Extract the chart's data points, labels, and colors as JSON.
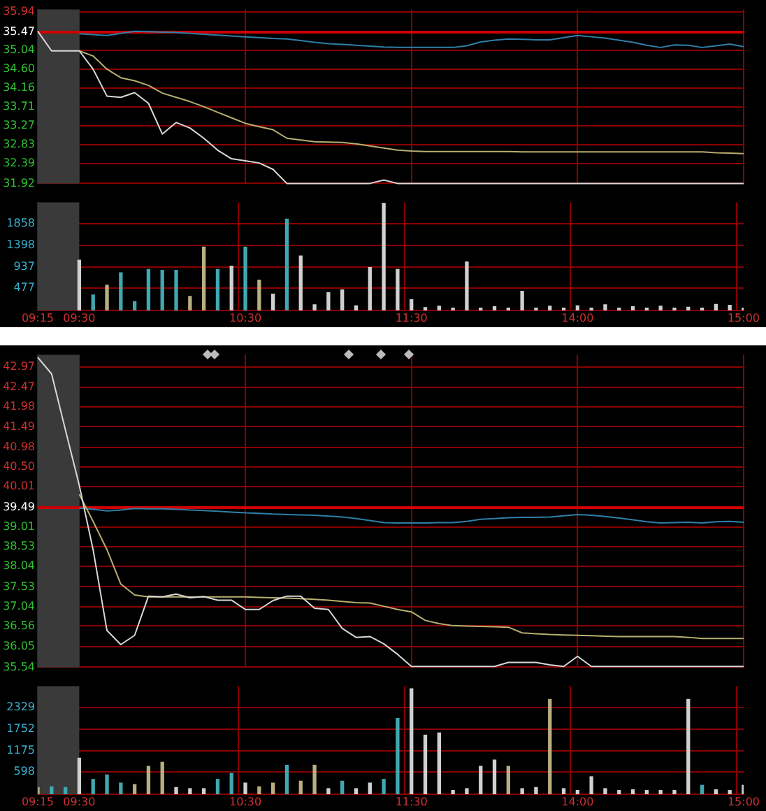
{
  "chart_data": [
    {
      "type": "line",
      "categories": [
        "09:15",
        null,
        null,
        "09:30",
        null,
        null,
        null,
        null,
        null,
        null,
        null,
        null,
        null,
        null,
        null,
        "10:30",
        null,
        null,
        null,
        null,
        null,
        null,
        null,
        null,
        null,
        null,
        null,
        "11:30",
        null,
        null,
        null,
        null,
        null,
        null,
        null,
        null,
        null,
        null,
        null,
        "14:00",
        null,
        null,
        null,
        null,
        null,
        null,
        null,
        null,
        null,
        null,
        null,
        "15:00"
      ],
      "tick_labels": "y",
      "ylim": [
        31.92,
        36.0
      ],
      "yticks": [
        35.94,
        35.47,
        35.04,
        {
          "value": 34.6,
          "label": "34.60"
        },
        34.16,
        33.71,
        33.27,
        32.83,
        32.39,
        31.92
      ],
      "grid": true,
      "marker": "none",
      "bands": [
        {
          "axis": "x",
          "from": "09:15",
          "to": "09:30",
          "color": "#3a3a3a"
        }
      ],
      "ref_lines": [
        {
          "axis": "y",
          "value": 35.47,
          "color": "#cc0000"
        }
      ],
      "series": [
        {
          "color": "#d8d8d8",
          "values": [
            35.49,
            35.03,
            35.03,
            35.03,
            34.6,
            33.97,
            33.94,
            34.05,
            33.8,
            33.08,
            33.35,
            33.22,
            32.98,
            32.7,
            32.5,
            32.45,
            32.4,
            32.25,
            31.92,
            31.92,
            31.92,
            31.92,
            31.92,
            31.92,
            31.92,
            32.0,
            31.92,
            31.92,
            31.92,
            31.92,
            31.92,
            31.92,
            31.92,
            31.92,
            31.92,
            31.92,
            31.92,
            31.92,
            31.92,
            31.92,
            31.92,
            31.92,
            31.92,
            31.92,
            31.92,
            31.92,
            31.92,
            31.92,
            31.92,
            31.92,
            31.92,
            31.92
          ]
        },
        {
          "color": "#b8ae70",
          "values": [
            null,
            null,
            null,
            35.03,
            34.91,
            34.6,
            34.4,
            34.33,
            34.22,
            34.04,
            33.94,
            33.84,
            33.72,
            33.59,
            33.46,
            33.33,
            33.25,
            33.18,
            32.98,
            32.94,
            32.9,
            32.89,
            32.88,
            32.85,
            32.8,
            32.75,
            32.7,
            32.68,
            32.67,
            32.67,
            32.67,
            32.67,
            32.67,
            32.67,
            32.67,
            32.66,
            32.66,
            32.66,
            32.66,
            32.66,
            32.66,
            32.66,
            32.66,
            32.66,
            32.66,
            32.66,
            32.66,
            32.66,
            32.66,
            32.64,
            32.63,
            32.62
          ]
        },
        {
          "color": "#2f7fa8",
          "values": [
            null,
            null,
            null,
            35.43,
            35.41,
            35.39,
            35.44,
            35.49,
            35.48,
            35.47,
            35.46,
            35.44,
            35.42,
            35.4,
            35.38,
            35.36,
            35.34,
            35.32,
            35.31,
            35.27,
            35.23,
            35.2,
            35.18,
            35.16,
            35.14,
            35.12,
            35.11,
            35.11,
            35.11,
            35.11,
            35.11,
            35.15,
            35.24,
            35.28,
            35.31,
            35.3,
            35.29,
            35.29,
            35.34,
            35.39,
            35.36,
            35.33,
            35.28,
            35.23,
            35.16,
            35.11,
            35.17,
            35.16,
            35.11,
            35.15,
            35.19,
            35.13
          ]
        }
      ]
    },
    {
      "type": "bar",
      "categories": [
        "09:15",
        null,
        null,
        "09:30",
        null,
        null,
        null,
        null,
        null,
        null,
        null,
        null,
        null,
        null,
        null,
        "10:30",
        null,
        null,
        null,
        null,
        null,
        null,
        null,
        null,
        null,
        null,
        null,
        "11:30",
        null,
        null,
        null,
        null,
        null,
        null,
        null,
        null,
        null,
        null,
        null,
        "14:00",
        null,
        null,
        null,
        null,
        null,
        null,
        null,
        null,
        null,
        null,
        null,
        "15:00"
      ],
      "ylim": [
        0,
        2318
      ],
      "yticks": [
        477,
        937,
        1398,
        1858
      ],
      "grid": true,
      "bands": [
        {
          "axis": "x",
          "from": "09:15",
          "to": "09:30",
          "color": "#3a3a3a"
        }
      ],
      "values": [
        null,
        null,
        null,
        1080,
        330,
        540,
        810,
        190,
        880,
        860,
        860,
        300,
        1360,
        880,
        950,
        1360,
        650,
        350,
        1960,
        1170,
        120,
        380,
        440,
        100,
        920,
        2300,
        880,
        230,
        60,
        90,
        50,
        1040,
        50,
        80,
        50,
        410,
        50,
        90,
        50,
        100,
        50,
        120,
        50,
        80,
        50,
        90,
        50,
        70,
        50,
        130,
        110,
        50
      ],
      "colors": [
        "#d0d0d0",
        "#d0d0d0",
        "#d0d0d0",
        "#d0d0d0",
        "#40a8b0",
        "#b8ae80",
        "#40a8b0",
        "#40a8b0",
        "#40a8b0",
        "#40a8b0",
        "#40a8b0",
        "#b8ae80",
        "#b8ae80",
        "#40a8b0",
        "#d0d0d0",
        "#40a8b0",
        "#b8ae80",
        "#d0d0d0",
        "#40a8b0",
        "#d0d0d0",
        "#d0d0d0",
        "#d0d0d0",
        "#d0d0d0",
        "#d0d0d0",
        "#d0d0d0",
        "#d0d0d0",
        "#d0d0d0",
        "#d0d0d0",
        "#d0d0d0",
        "#d0d0d0",
        "#d0d0d0",
        "#d0d0d0",
        "#d0d0d0",
        "#d0d0d0",
        "#d0d0d0",
        "#d0d0d0",
        "#d0d0d0",
        "#d0d0d0",
        "#d0d0d0",
        "#d0d0d0",
        "#d0d0d0",
        "#d0d0d0",
        "#d0d0d0",
        "#d0d0d0",
        "#d0d0d0",
        "#d0d0d0",
        "#d0d0d0",
        "#d0d0d0",
        "#d0d0d0",
        "#d0d0d0",
        "#d0d0d0",
        "#d0d0d0"
      ]
    },
    {
      "type": "line",
      "categories": [
        "09:15",
        null,
        null,
        "09:30",
        null,
        null,
        null,
        null,
        null,
        null,
        null,
        null,
        null,
        null,
        null,
        "10:30",
        null,
        null,
        null,
        null,
        null,
        null,
        null,
        null,
        null,
        null,
        null,
        "11:30",
        null,
        null,
        null,
        null,
        null,
        null,
        null,
        null,
        null,
        null,
        null,
        "14:00",
        null,
        null,
        null,
        null,
        null,
        null,
        null,
        null,
        null,
        null,
        null,
        "15:00"
      ],
      "tick_labels": "y",
      "ylim": [
        35.54,
        43.27
      ],
      "yticks": [
        42.97,
        42.47,
        41.98,
        41.49,
        40.98,
        {
          "value": 40.5,
          "label": "40.50"
        },
        40.01,
        39.49,
        39.01,
        38.53,
        38.04,
        37.53,
        37.04,
        36.56,
        36.05,
        35.54
      ],
      "grid": true,
      "marker": "none",
      "bands": [
        {
          "axis": "x",
          "from": "09:15",
          "to": "09:30",
          "color": "#3a3a3a"
        }
      ],
      "ref_lines": [
        {
          "axis": "y",
          "value": 39.49,
          "color": "#cc0000"
        }
      ],
      "series": [
        {
          "color": "#d8d8d8",
          "values": [
            43.21,
            42.8,
            41.41,
            40.04,
            38.45,
            36.45,
            36.1,
            36.33,
            37.3,
            37.28,
            37.35,
            37.26,
            37.29,
            37.2,
            37.2,
            36.97,
            36.97,
            37.19,
            37.3,
            37.3,
            37.0,
            36.97,
            36.5,
            36.28,
            36.3,
            36.12,
            35.86,
            35.56,
            35.56,
            35.56,
            35.56,
            35.56,
            35.56,
            35.56,
            35.66,
            35.66,
            35.66,
            35.6,
            35.56,
            35.81,
            35.56,
            35.56,
            35.56,
            35.56,
            35.56,
            35.56,
            35.56,
            35.56,
            35.56,
            35.56,
            35.56,
            35.56
          ]
        },
        {
          "color": "#b8ae70",
          "values": [
            null,
            null,
            null,
            39.82,
            39.15,
            38.45,
            37.6,
            37.33,
            37.28,
            37.28,
            37.28,
            37.28,
            37.28,
            37.28,
            37.28,
            37.28,
            37.27,
            37.26,
            37.25,
            37.24,
            37.22,
            37.2,
            37.17,
            37.14,
            37.13,
            37.05,
            36.97,
            36.91,
            36.7,
            36.62,
            36.57,
            36.56,
            36.55,
            36.54,
            36.53,
            36.39,
            36.37,
            36.35,
            36.34,
            36.33,
            36.32,
            36.31,
            36.3,
            36.3,
            36.3,
            36.3,
            36.3,
            36.28,
            36.25,
            36.25,
            36.25,
            36.25
          ]
        },
        {
          "color": "#2f7fa8",
          "values": [
            null,
            null,
            null,
            39.48,
            39.45,
            39.41,
            39.43,
            39.47,
            39.46,
            39.46,
            39.45,
            39.43,
            39.42,
            39.4,
            39.38,
            39.36,
            39.35,
            39.33,
            39.32,
            39.31,
            39.3,
            39.28,
            39.26,
            39.22,
            39.17,
            39.12,
            39.11,
            39.11,
            39.11,
            39.12,
            39.12,
            39.15,
            39.2,
            39.22,
            39.24,
            39.25,
            39.25,
            39.26,
            39.29,
            39.32,
            39.3,
            39.27,
            39.23,
            39.19,
            39.14,
            39.11,
            39.12,
            39.13,
            39.11,
            39.14,
            39.15,
            39.13
          ]
        }
      ]
    },
    {
      "type": "bar",
      "categories": [
        "09:15",
        null,
        null,
        "09:30",
        null,
        null,
        null,
        null,
        null,
        null,
        null,
        null,
        null,
        null,
        null,
        "10:30",
        null,
        null,
        null,
        null,
        null,
        null,
        null,
        null,
        null,
        null,
        null,
        "11:30",
        null,
        null,
        null,
        null,
        null,
        null,
        null,
        null,
        null,
        null,
        null,
        "14:00",
        null,
        null,
        null,
        null,
        null,
        null,
        null,
        null,
        null,
        null,
        null,
        "15:00"
      ],
      "ylim": [
        0,
        2906
      ],
      "yticks": [
        598,
        1175,
        1752,
        2329
      ],
      "grid": true,
      "bands": [
        {
          "axis": "x",
          "from": "09:15",
          "to": "09:30",
          "color": "#3a3a3a"
        }
      ],
      "values": [
        180,
        200,
        180,
        970,
        400,
        520,
        300,
        260,
        750,
        860,
        180,
        150,
        150,
        400,
        560,
        300,
        200,
        300,
        780,
        350,
        780,
        150,
        350,
        150,
        300,
        400,
        2040,
        2840,
        1590,
        1650,
        100,
        150,
        750,
        920,
        750,
        150,
        180,
        2550,
        150,
        100,
        470,
        150,
        100,
        120,
        100,
        100,
        100,
        2550,
        240,
        120,
        100,
        240
      ],
      "colors": [
        "#b8ae80",
        "#40a8b0",
        "#40a8b0",
        "#d0d0d0",
        "#40a8b0",
        "#40a8b0",
        "#40a8b0",
        "#b8ae80",
        "#b8ae80",
        "#b8ae80",
        "#d0d0d0",
        "#d0d0d0",
        "#d0d0d0",
        "#40a8b0",
        "#40a8b0",
        "#d0d0d0",
        "#b8ae80",
        "#b8ae80",
        "#40a8b0",
        "#b8ae80",
        "#b8ae80",
        "#d0d0d0",
        "#40a8b0",
        "#d0d0d0",
        "#d0d0d0",
        "#40a8b0",
        "#40a8b0",
        "#d0d0d0",
        "#d0d0d0",
        "#d0d0d0",
        "#d0d0d0",
        "#d0d0d0",
        "#d0d0d0",
        "#d0d0d0",
        "#b8ae80",
        "#d0d0d0",
        "#d0d0d0",
        "#b8ae80",
        "#d0d0d0",
        "#d0d0d0",
        "#d0d0d0",
        "#d0d0d0",
        "#d0d0d0",
        "#d0d0d0",
        "#d0d0d0",
        "#d0d0d0",
        "#d0d0d0",
        "#d0d0d0",
        "#40a8b0",
        "#d0d0d0",
        "#d0d0d0",
        "#d0d0d0"
      ]
    }
  ]
}
